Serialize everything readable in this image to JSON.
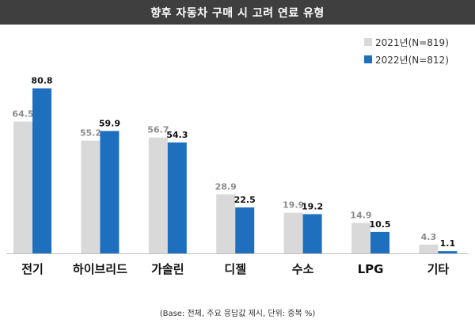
{
  "chart_data": {
    "type": "bar",
    "title": "향후 자동차 구매 시 고려 연료 유형",
    "categories": [
      "전기",
      "하이브리드",
      "가솔린",
      "디젤",
      "수소",
      "LPG",
      "기타"
    ],
    "series": [
      {
        "name": "2021년(N=819)",
        "color": "#d9d9d9",
        "label_color": "#8c8c8c",
        "values": [
          64.5,
          55.2,
          56.7,
          28.9,
          19.9,
          14.9,
          4.3
        ]
      },
      {
        "name": "2022년(N=812)",
        "color": "#1f6fbf",
        "label_color": "#111111",
        "values": [
          80.8,
          59.9,
          54.3,
          22.5,
          19.2,
          10.5,
          1.1
        ]
      }
    ],
    "ylim": [
      0,
      100
    ],
    "grid": false,
    "legend": "top-right"
  },
  "footnote": "(Base: 전체, 주요 응답값 제시, 단위: 중복 %)"
}
